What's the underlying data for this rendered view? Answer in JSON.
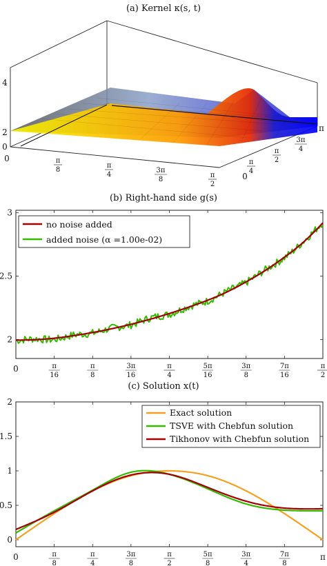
{
  "chart_data": [
    {
      "type": "surface",
      "title": "(a) Kernel κ(s, t)",
      "z_ticks": [
        "0",
        "2",
        "4"
      ],
      "s_ticks": [
        "0",
        "π/8",
        "π/4",
        "3π/8",
        "π/2"
      ],
      "t_ticks": [
        "0",
        "π/4",
        "π/2",
        "3π/4",
        "π"
      ],
      "s_range": [
        0,
        1.5708
      ],
      "t_range": [
        0,
        3.1416
      ],
      "z_range": [
        0,
        5
      ],
      "colormap": [
        "#f5f500",
        "#ff8a00",
        "#e52800",
        "#0000ff"
      ],
      "grid": true
    },
    {
      "type": "line",
      "title": "(b) Right-hand side g(s)",
      "x_ticks": [
        "0",
        "π/16",
        "π/8",
        "3π/16",
        "π/4",
        "5π/16",
        "3π/8",
        "7π/16",
        "π/2"
      ],
      "y_ticks": [
        "2",
        "2.5",
        "3"
      ],
      "xlim": [
        0,
        1.5708
      ],
      "ylim": [
        1.85,
        3.02
      ],
      "legend_position": "top-left",
      "series": [
        {
          "name": "no noise added",
          "color": "#a40000",
          "x": [
            0,
            0.0982,
            0.1963,
            0.2945,
            0.3927,
            0.4909,
            0.589,
            0.6872,
            0.7854,
            0.8836,
            0.9817,
            1.0799,
            1.1781,
            1.2763,
            1.3744,
            1.4726,
            1.5708
          ],
          "y": [
            1.995,
            1.998,
            2.01,
            2.03,
            2.055,
            2.085,
            2.12,
            2.16,
            2.205,
            2.255,
            2.31,
            2.375,
            2.455,
            2.545,
            2.65,
            2.77,
            2.92
          ]
        },
        {
          "name": "added noise (α =1.00e-02)",
          "color": "#33bb00",
          "x": [
            0,
            0.0982,
            0.1963,
            0.2945,
            0.3927,
            0.4909,
            0.589,
            0.6872,
            0.7854,
            0.8836,
            0.9817,
            1.0799,
            1.1781,
            1.2763,
            1.3744,
            1.4726,
            1.5708
          ],
          "y": [
            1.99,
            2.005,
            2.0,
            2.035,
            2.05,
            2.09,
            2.115,
            2.17,
            2.2,
            2.26,
            2.305,
            2.38,
            2.45,
            2.55,
            2.645,
            2.775,
            2.925
          ],
          "noise_amplitude": 0.03
        }
      ]
    },
    {
      "type": "line",
      "title": "(c) Solution x(t)",
      "x_ticks": [
        "0",
        "π/8",
        "π/4",
        "3π/8",
        "π/2",
        "5π/8",
        "3π/4",
        "7π/8",
        "π"
      ],
      "y_ticks": [
        "0",
        "0.5",
        "1",
        "1.5",
        "2"
      ],
      "xlim": [
        0,
        3.1416
      ],
      "ylim": [
        -0.1,
        2
      ],
      "legend_position": "top-right",
      "series": [
        {
          "name": "Exact solution",
          "color": "#f5a020",
          "x": [
            0,
            0.3927,
            0.7854,
            1.1781,
            1.5708,
            1.9635,
            2.3562,
            2.7489,
            3.1416
          ],
          "y": [
            0.0,
            0.38,
            0.71,
            0.93,
            1.0,
            0.93,
            0.71,
            0.38,
            0.0
          ]
        },
        {
          "name": "TSVE with Chebfun solution",
          "color": "#33bb00",
          "x": [
            0,
            0.3927,
            0.7854,
            1.1781,
            1.5708,
            1.9635,
            2.3562,
            2.7489,
            3.1416
          ],
          "y": [
            0.1,
            0.42,
            0.72,
            0.98,
            0.95,
            0.74,
            0.52,
            0.43,
            0.42
          ]
        },
        {
          "name": "Tikhonov with Chebfun solution",
          "color": "#a40000",
          "x": [
            0,
            0.3927,
            0.7854,
            1.1781,
            1.5708,
            1.9635,
            2.3562,
            2.7489,
            3.1416
          ],
          "y": [
            0.15,
            0.4,
            0.71,
            0.94,
            0.95,
            0.76,
            0.56,
            0.46,
            0.45
          ]
        }
      ]
    }
  ]
}
